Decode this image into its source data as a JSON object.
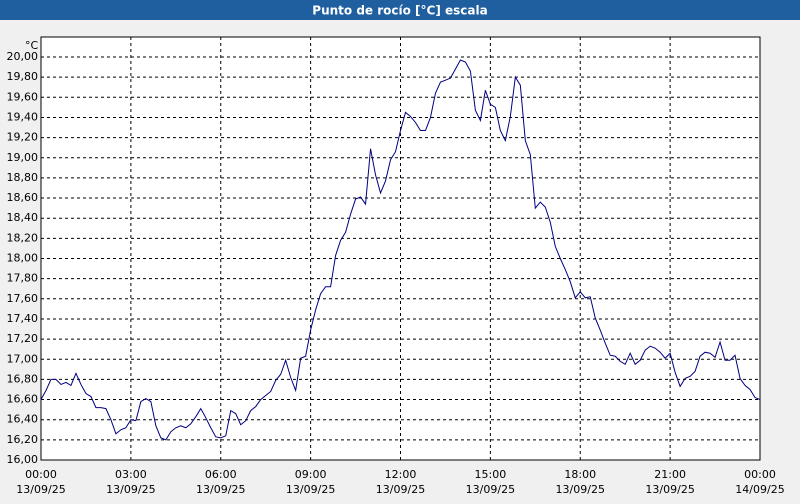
{
  "chart_data": {
    "type": "line",
    "title": "Punto de rocío [°C] escala",
    "y_unit": "°C",
    "color": "#000080",
    "grid": true,
    "xlim": [
      0,
      1440
    ],
    "xticks": [
      {
        "value": 0,
        "label": "00:00"
      },
      {
        "value": 180,
        "label": "03:00"
      },
      {
        "value": 360,
        "label": "06:00"
      },
      {
        "value": 540,
        "label": "09:00"
      },
      {
        "value": 720,
        "label": "12:00"
      },
      {
        "value": 900,
        "label": "15:00"
      },
      {
        "value": 1080,
        "label": "18:00"
      },
      {
        "value": 1260,
        "label": "21:00"
      },
      {
        "value": 1440,
        "label": "00:00"
      }
    ],
    "xtick_dates": [
      "13/09/25",
      "13/09/25",
      "13/09/25",
      "13/09/25",
      "13/09/25",
      "13/09/25",
      "13/09/25",
      "13/09/25",
      "14/09/25"
    ],
    "ylim": [
      16,
      20
    ],
    "yticks": [
      {
        "value": 16,
        "label": "16,00"
      },
      {
        "value": 16.2,
        "label": "16,20"
      },
      {
        "value": 16.4,
        "label": "16,40"
      },
      {
        "value": 16.6,
        "label": "16,60"
      },
      {
        "value": 16.8,
        "label": "16,80"
      },
      {
        "value": 17,
        "label": "17,00"
      },
      {
        "value": 17.2,
        "label": "17,20"
      },
      {
        "value": 17.4,
        "label": "17,40"
      },
      {
        "value": 17.6,
        "label": "17,60"
      },
      {
        "value": 17.8,
        "label": "17,80"
      },
      {
        "value": 18,
        "label": "18,00"
      },
      {
        "value": 18.2,
        "label": "18,20"
      },
      {
        "value": 18.4,
        "label": "18,40"
      },
      {
        "value": 18.6,
        "label": "18,60"
      },
      {
        "value": 18.8,
        "label": "18,80"
      },
      {
        "value": 19,
        "label": "19,00"
      },
      {
        "value": 19.2,
        "label": "19,20"
      },
      {
        "value": 19.4,
        "label": "19,40"
      },
      {
        "value": 19.6,
        "label": "19,60"
      },
      {
        "value": 19.8,
        "label": "19,80"
      },
      {
        "value": 20,
        "label": "20,00"
      }
    ],
    "x": [
      0,
      10,
      20,
      30,
      40,
      50,
      60,
      70,
      80,
      90,
      100,
      110,
      120,
      130,
      140,
      150,
      160,
      170,
      180,
      190,
      200,
      210,
      220,
      230,
      240,
      250,
      260,
      270,
      280,
      290,
      300,
      310,
      320,
      330,
      340,
      350,
      360,
      370,
      380,
      390,
      400,
      410,
      420,
      430,
      440,
      450,
      460,
      470,
      480,
      490,
      500,
      510,
      520,
      530,
      540,
      550,
      560,
      570,
      580,
      590,
      600,
      610,
      620,
      630,
      640,
      650,
      660,
      670,
      680,
      690,
      700,
      710,
      720,
      730,
      740,
      750,
      760,
      770,
      780,
      790,
      800,
      810,
      820,
      830,
      840,
      850,
      860,
      870,
      880,
      890,
      900,
      910,
      920,
      930,
      940,
      950,
      960,
      970,
      980,
      990,
      1000,
      1010,
      1020,
      1030,
      1040,
      1050,
      1060,
      1070,
      1080,
      1090,
      1100,
      1110,
      1120,
      1130,
      1140,
      1150,
      1160,
      1170,
      1180,
      1190,
      1200,
      1210,
      1220,
      1230,
      1240,
      1250,
      1260,
      1270,
      1280,
      1290,
      1300,
      1310,
      1320,
      1330,
      1340,
      1350,
      1360,
      1370,
      1380,
      1390,
      1400,
      1410,
      1420,
      1430,
      1440
    ],
    "values": [
      16.6,
      16.69,
      16.8,
      16.8,
      16.75,
      16.77,
      16.74,
      16.86,
      16.75,
      16.66,
      16.63,
      16.52,
      16.52,
      16.51,
      16.4,
      16.26,
      16.3,
      16.32,
      16.4,
      16.39,
      16.58,
      16.61,
      16.58,
      16.34,
      16.22,
      16.2,
      16.28,
      16.32,
      16.34,
      16.32,
      16.36,
      16.43,
      16.51,
      16.42,
      16.32,
      16.23,
      16.22,
      16.24,
      16.49,
      16.46,
      16.35,
      16.39,
      16.49,
      16.53,
      16.6,
      16.64,
      16.68,
      16.79,
      16.85,
      16.99,
      16.82,
      16.69,
      17.01,
      17.03,
      17.29,
      17.49,
      17.65,
      17.72,
      17.72,
      18.03,
      18.18,
      18.26,
      18.44,
      18.59,
      18.61,
      18.54,
      19.09,
      18.83,
      18.65,
      18.77,
      18.98,
      19.06,
      19.27,
      19.45,
      19.41,
      19.35,
      19.27,
      19.27,
      19.4,
      19.64,
      19.75,
      19.77,
      19.79,
      19.88,
      19.97,
      19.95,
      19.86,
      19.47,
      19.37,
      19.67,
      19.53,
      19.5,
      19.27,
      19.17,
      19.41,
      19.8,
      19.72,
      19.17,
      19.03,
      18.5,
      18.56,
      18.51,
      18.36,
      18.12,
      18.0,
      17.89,
      17.77,
      17.61,
      17.67,
      17.61,
      17.62,
      17.41,
      17.29,
      17.16,
      17.04,
      17.03,
      16.98,
      16.95,
      17.06,
      16.95,
      16.99,
      17.09,
      17.13,
      17.11,
      17.07,
      17.01,
      17.06,
      16.87,
      16.73,
      16.81,
      16.83,
      16.88,
      17.03,
      17.07,
      17.06,
      17.02,
      17.17,
      16.99,
      16.99,
      17.04,
      16.81,
      16.74,
      16.7,
      16.62,
      16.6
    ]
  }
}
